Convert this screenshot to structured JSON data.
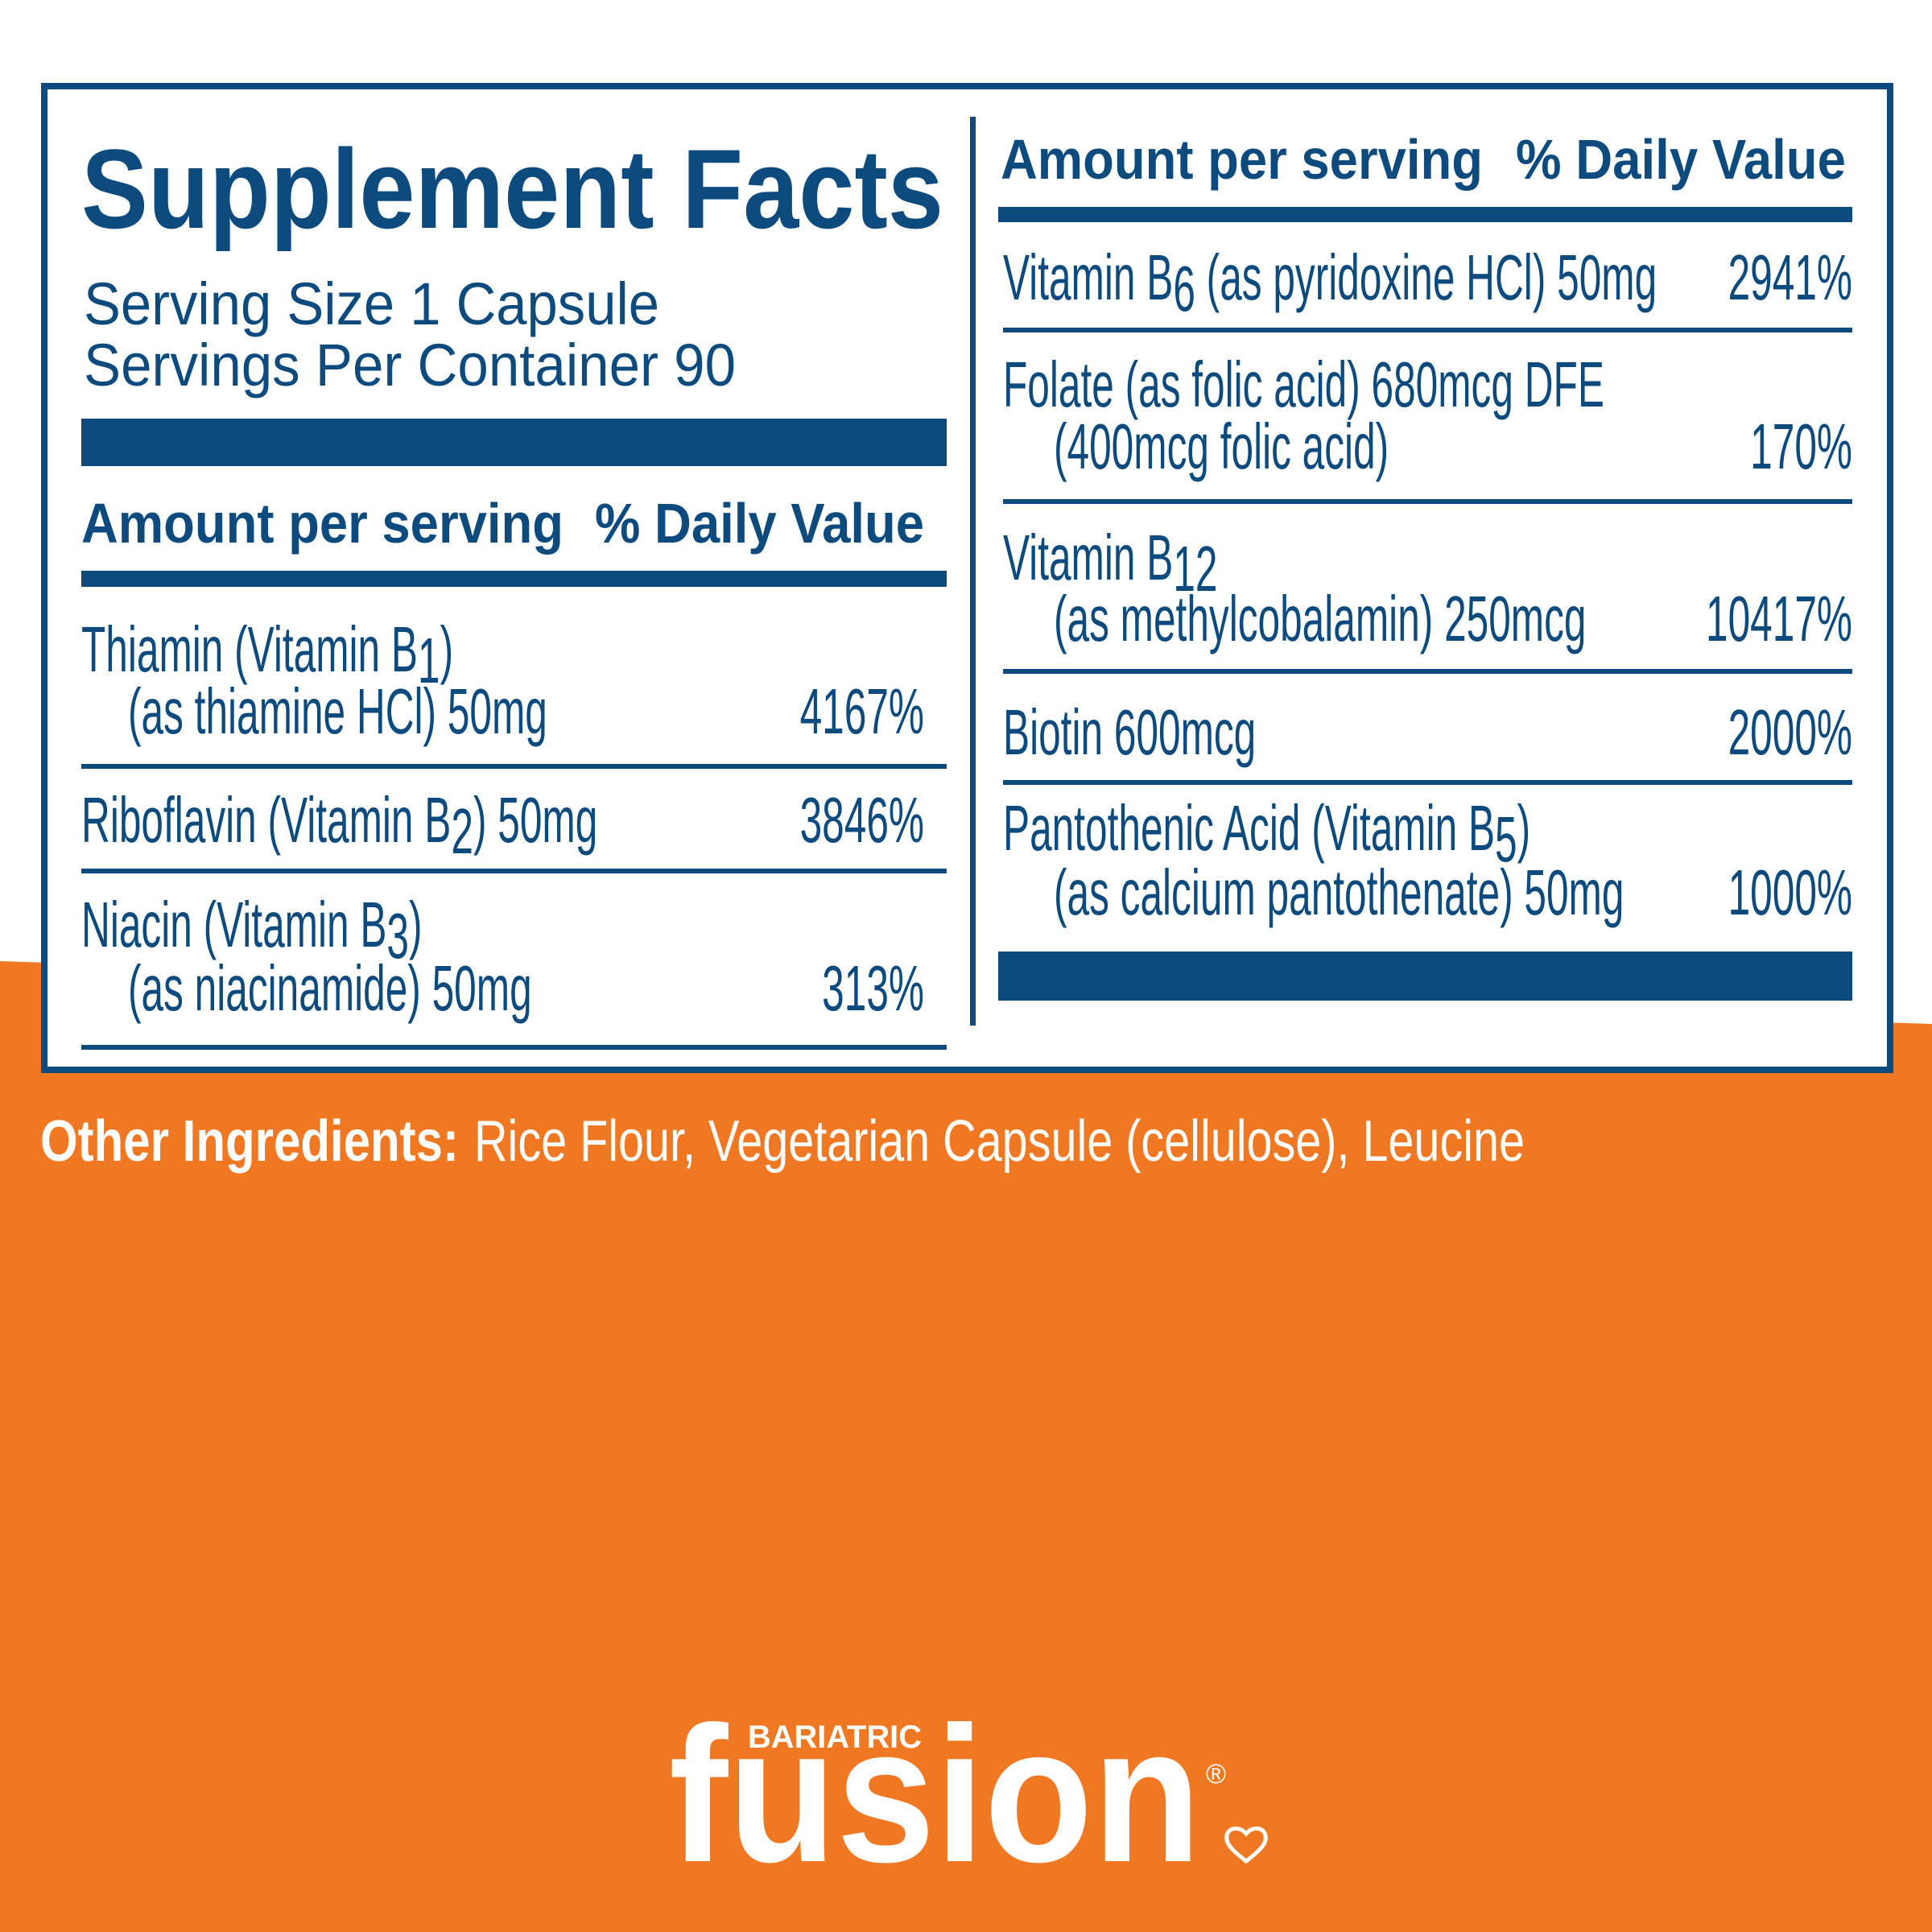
{
  "panel": {
    "title": "Supplement Facts",
    "serving_size": "Serving Size 1 Capsule",
    "servings_per_container": "Servings Per Container 90"
  },
  "left_column": {
    "header_amount": "Amount per serving",
    "header_dv": "% Daily Value",
    "rows": [
      {
        "lines": [
          [
            "Thiamin (Vitamin B",
            "1",
            ")"
          ],
          [
            "(as thiamine HCl) 50mg"
          ]
        ],
        "dv": "4167%"
      },
      {
        "lines": [
          [
            "Riboflavin (Vitamin B",
            "2",
            ")  50mg"
          ]
        ],
        "dv": "3846%"
      },
      {
        "lines": [
          [
            "Niacin (Vitamin B",
            "3",
            ")"
          ],
          [
            "(as niacinamide) 50mg"
          ]
        ],
        "dv": "313%"
      }
    ]
  },
  "right_column": {
    "header_amount": "Amount per serving",
    "header_dv": "% Daily Value",
    "rows": [
      {
        "lines": [
          [
            "Vitamin B",
            "6",
            " (as pyridoxine HCl) 50mg"
          ]
        ],
        "dv": "2941%"
      },
      {
        "lines": [
          [
            "Folate (as folic acid) 680mcg DFE"
          ],
          [
            "(400mcg folic acid)"
          ]
        ],
        "dv": "170%"
      },
      {
        "lines": [
          [
            "Vitamin B",
            "12"
          ],
          [
            "(as methylcobalamin) 250mcg"
          ]
        ],
        "dv": "10417%"
      },
      {
        "lines": [
          [
            "Biotin 600mcg"
          ]
        ],
        "dv": "2000%"
      },
      {
        "lines": [
          [
            "Pantothenic Acid (Vitamin B",
            "5",
            ")"
          ],
          [
            "(as calcium pantothenate) 50mg"
          ]
        ],
        "dv": "1000%"
      }
    ]
  },
  "other_ingredients": {
    "label": "Other Ingredients:",
    "text": "Rice Flour, Vegetarian Capsule (cellulose), Leucine"
  },
  "logo": {
    "small": "BARIATRIC",
    "name": "fusion",
    "mark": "®"
  }
}
